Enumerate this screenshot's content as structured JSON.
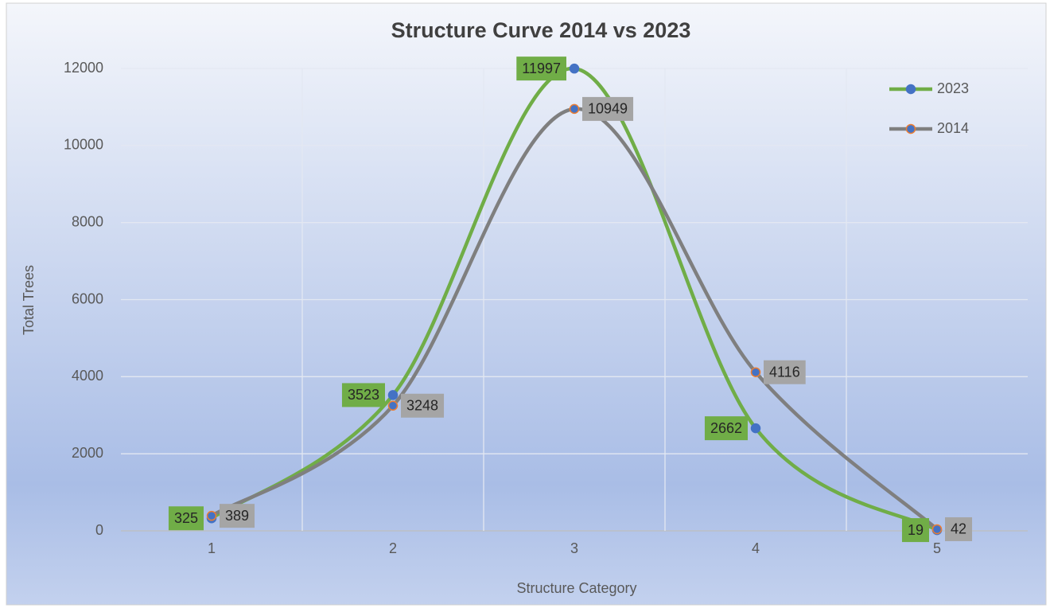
{
  "chart_data": {
    "type": "line",
    "smooth": true,
    "title": "Structure Curve 2014 vs 2023",
    "x_label": "Structure Category",
    "y_label": "Total Trees",
    "categories": [
      "1",
      "2",
      "3",
      "4",
      "5"
    ],
    "series": [
      {
        "name": "2023",
        "color": "#70ad47",
        "marker_color": "#4472c4",
        "marker_edge": "#4472c4",
        "label_color": "#70ad47",
        "label_side": "left",
        "values": [
          325,
          3523,
          11997,
          2662,
          19
        ]
      },
      {
        "name": "2014",
        "color": "#7f7f7f",
        "marker_color": "#4472c4",
        "marker_edge": "#ed7d31",
        "label_color": "#a5a5a5",
        "label_side": "right",
        "values": [
          389,
          3248,
          10949,
          4116,
          42
        ]
      }
    ],
    "ylim": [
      0,
      12000
    ],
    "yticks": [
      0,
      2000,
      4000,
      6000,
      8000,
      10000,
      12000
    ],
    "grid": true,
    "legend": "upper right"
  }
}
